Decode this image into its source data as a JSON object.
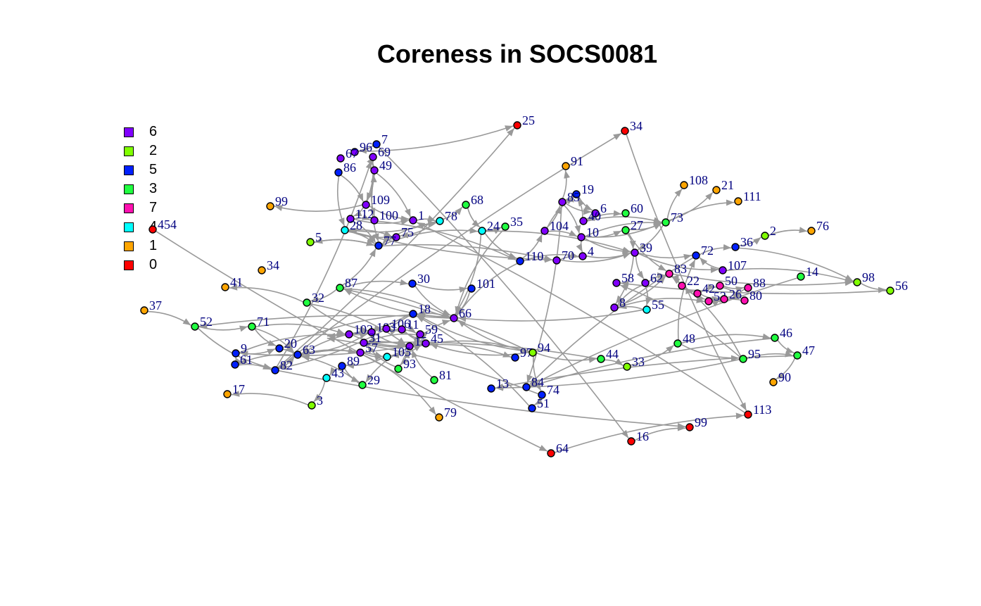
{
  "title": "Coreness in SOCS0081",
  "legend": [
    {
      "label": "6",
      "color": "#8000ff"
    },
    {
      "label": "2",
      "color": "#80ff00"
    },
    {
      "label": "5",
      "color": "#0020ff"
    },
    {
      "label": "3",
      "color": "#20ff40"
    },
    {
      "label": "7",
      "color": "#ff10b0"
    },
    {
      "label": "4",
      "color": "#00ffff"
    },
    {
      "label": "1",
      "color": "#ffa500"
    },
    {
      "label": "0",
      "color": "#ff0000"
    }
  ],
  "colors": {
    "edge": "#999999",
    "node_label": "#000080",
    "node_border": "#000000"
  },
  "nodes": [
    {
      "id": "25",
      "core": "0"
    },
    {
      "id": "34",
      "core": "0"
    },
    {
      "id": "454",
      "core": "0"
    },
    {
      "id": "64",
      "core": "0"
    },
    {
      "id": "16",
      "core": "0"
    },
    {
      "id": "99",
      "core": "0"
    },
    {
      "id": "113",
      "core": "0"
    },
    {
      "id": "7",
      "core": "5"
    },
    {
      "id": "96",
      "core": "6"
    },
    {
      "id": "67",
      "core": "6"
    },
    {
      "id": "69",
      "core": "6"
    },
    {
      "id": "86",
      "core": "5"
    },
    {
      "id": "49",
      "core": "6"
    },
    {
      "id": "109",
      "core": "6"
    },
    {
      "id": "112",
      "core": "6"
    },
    {
      "id": "100",
      "core": "6"
    },
    {
      "id": "1",
      "core": "6"
    },
    {
      "id": "78",
      "core": "4"
    },
    {
      "id": "68",
      "core": "3"
    },
    {
      "id": "28",
      "core": "4"
    },
    {
      "id": "75",
      "core": "6"
    },
    {
      "id": "77",
      "core": "5"
    },
    {
      "id": "24",
      "core": "4"
    },
    {
      "id": "35",
      "core": "3"
    },
    {
      "id": "5",
      "core": "2"
    },
    {
      "id": "99",
      "core": "1"
    },
    {
      "id": "34",
      "core": "1"
    },
    {
      "id": "41",
      "core": "1"
    },
    {
      "id": "37",
      "core": "1"
    },
    {
      "id": "91",
      "core": "1"
    },
    {
      "id": "19",
      "core": "5"
    },
    {
      "id": "85",
      "core": "6"
    },
    {
      "id": "6",
      "core": "6"
    },
    {
      "id": "40",
      "core": "6"
    },
    {
      "id": "60",
      "core": "3"
    },
    {
      "id": "104",
      "core": "6"
    },
    {
      "id": "10",
      "core": "6"
    },
    {
      "id": "27",
      "core": "3"
    },
    {
      "id": "73",
      "core": "3"
    },
    {
      "id": "108",
      "core": "1"
    },
    {
      "id": "21",
      "core": "1"
    },
    {
      "id": "111",
      "core": "1"
    },
    {
      "id": "2",
      "core": "2"
    },
    {
      "id": "76",
      "core": "1"
    },
    {
      "id": "110",
      "core": "5"
    },
    {
      "id": "70",
      "core": "6"
    },
    {
      "id": "4",
      "core": "6"
    },
    {
      "id": "39",
      "core": "6"
    },
    {
      "id": "72",
      "core": "5"
    },
    {
      "id": "36",
      "core": "5"
    },
    {
      "id": "107",
      "core": "6"
    },
    {
      "id": "83",
      "core": "7"
    },
    {
      "id": "22",
      "core": "7"
    },
    {
      "id": "42",
      "core": "7"
    },
    {
      "id": "50",
      "core": "7"
    },
    {
      "id": "88",
      "core": "7"
    },
    {
      "id": "53",
      "core": "7"
    },
    {
      "id": "26",
      "core": "7"
    },
    {
      "id": "80",
      "core": "7"
    },
    {
      "id": "14",
      "core": "3"
    },
    {
      "id": "98",
      "core": "2"
    },
    {
      "id": "56",
      "core": "2"
    },
    {
      "id": "58",
      "core": "6"
    },
    {
      "id": "62",
      "core": "6"
    },
    {
      "id": "8",
      "core": "6"
    },
    {
      "id": "55",
      "core": "4"
    },
    {
      "id": "87",
      "core": "3"
    },
    {
      "id": "30",
      "core": "5"
    },
    {
      "id": "101",
      "core": "5"
    },
    {
      "id": "32",
      "core": "3"
    },
    {
      "id": "66",
      "core": "6"
    },
    {
      "id": "18",
      "core": "5"
    },
    {
      "id": "52",
      "core": "3"
    },
    {
      "id": "71",
      "core": "3"
    },
    {
      "id": "102",
      "core": "6"
    },
    {
      "id": "103",
      "core": "6"
    },
    {
      "id": "106",
      "core": "6"
    },
    {
      "id": "11",
      "core": "6"
    },
    {
      "id": "59",
      "core": "6"
    },
    {
      "id": "31",
      "core": "6"
    },
    {
      "id": "15",
      "core": "6"
    },
    {
      "id": "45",
      "core": "6"
    },
    {
      "id": "9",
      "core": "5"
    },
    {
      "id": "20",
      "core": "5"
    },
    {
      "id": "63",
      "core": "5"
    },
    {
      "id": "61",
      "core": "5"
    },
    {
      "id": "82",
      "core": "5"
    },
    {
      "id": "57",
      "core": "6"
    },
    {
      "id": "105",
      "core": "4"
    },
    {
      "id": "89",
      "core": "5"
    },
    {
      "id": "93",
      "core": "3"
    },
    {
      "id": "43",
      "core": "4"
    },
    {
      "id": "29",
      "core": "3"
    },
    {
      "id": "81",
      "core": "3"
    },
    {
      "id": "3",
      "core": "2"
    },
    {
      "id": "17",
      "core": "1"
    },
    {
      "id": "79",
      "core": "1"
    },
    {
      "id": "97",
      "core": "5"
    },
    {
      "id": "94",
      "core": "2"
    },
    {
      "id": "44",
      "core": "3"
    },
    {
      "id": "33",
      "core": "2"
    },
    {
      "id": "48",
      "core": "3"
    },
    {
      "id": "95",
      "core": "3"
    },
    {
      "id": "46",
      "core": "3"
    },
    {
      "id": "47",
      "core": "3"
    },
    {
      "id": "90",
      "core": "1"
    },
    {
      "id": "13",
      "core": "5"
    },
    {
      "id": "84",
      "core": "5"
    },
    {
      "id": "74",
      "core": "5"
    },
    {
      "id": "51",
      "core": "5"
    }
  ],
  "edges": [
    [
      86,
      0
    ],
    [
      86,
      1
    ],
    [
      2,
      3
    ],
    [
      4,
      5
    ],
    [
      1,
      6
    ],
    [
      3,
      6
    ],
    [
      8,
      0
    ],
    [
      7,
      4
    ],
    [
      86,
      5
    ],
    [
      7,
      8
    ],
    [
      86,
      10
    ],
    [
      10,
      13
    ],
    [
      10,
      12
    ],
    [
      11,
      13
    ],
    [
      13,
      12
    ],
    [
      13,
      14
    ],
    [
      12,
      15
    ],
    [
      14,
      15
    ],
    [
      13,
      16
    ],
    [
      12,
      16
    ],
    [
      14,
      16
    ],
    [
      16,
      17
    ],
    [
      17,
      18
    ],
    [
      17,
      19
    ],
    [
      11,
      19
    ],
    [
      17,
      20
    ],
    [
      19,
      20
    ],
    [
      19,
      21
    ],
    [
      20,
      21
    ],
    [
      14,
      21
    ],
    [
      12,
      21
    ],
    [
      21,
      22
    ],
    [
      18,
      22
    ],
    [
      19,
      20
    ],
    [
      22,
      23
    ],
    [
      21,
      17
    ],
    [
      6,
      16
    ],
    [
      13,
      25
    ],
    [
      21,
      24
    ],
    [
      24,
      21
    ],
    [
      22,
      44
    ],
    [
      21,
      45
    ],
    [
      19,
      45
    ],
    [
      15,
      44
    ],
    [
      44,
      35
    ],
    [
      35,
      30
    ],
    [
      35,
      31
    ],
    [
      30,
      31
    ],
    [
      31,
      32
    ],
    [
      32,
      33
    ],
    [
      33,
      30
    ],
    [
      33,
      34
    ],
    [
      30,
      32
    ],
    [
      35,
      36
    ],
    [
      36,
      37
    ],
    [
      36,
      38
    ],
    [
      37,
      38
    ],
    [
      31,
      36
    ],
    [
      36,
      46
    ],
    [
      44,
      46
    ],
    [
      46,
      47
    ],
    [
      37,
      47
    ],
    [
      36,
      47
    ],
    [
      38,
      47
    ],
    [
      31,
      29
    ],
    [
      38,
      39
    ],
    [
      38,
      40
    ],
    [
      38,
      41
    ],
    [
      47,
      48
    ],
    [
      48,
      49
    ],
    [
      49,
      42
    ],
    [
      42,
      43
    ],
    [
      47,
      50
    ],
    [
      50,
      48
    ],
    [
      48,
      107
    ],
    [
      49,
      60
    ],
    [
      60,
      61
    ],
    [
      61,
      62
    ],
    [
      36,
      38
    ],
    [
      45,
      46
    ],
    [
      47,
      63
    ],
    [
      47,
      64
    ],
    [
      63,
      64
    ],
    [
      63,
      51
    ],
    [
      64,
      51
    ],
    [
      51,
      52
    ],
    [
      52,
      53
    ],
    [
      53,
      54
    ],
    [
      54,
      55
    ],
    [
      55,
      56
    ],
    [
      56,
      57
    ],
    [
      57,
      58
    ],
    [
      53,
      57
    ],
    [
      54,
      58
    ],
    [
      52,
      56
    ],
    [
      50,
      60
    ],
    [
      51,
      60
    ],
    [
      64,
      56
    ],
    [
      65,
      64
    ],
    [
      63,
      65
    ],
    [
      37,
      51
    ],
    [
      22,
      47
    ],
    [
      45,
      47
    ],
    [
      33,
      38
    ],
    [
      59,
      107
    ],
    [
      31,
      107
    ],
    [
      66,
      21
    ],
    [
      66,
      67
    ],
    [
      67,
      68
    ],
    [
      66,
      69
    ],
    [
      69,
      27
    ],
    [
      66,
      70
    ],
    [
      70,
      71
    ],
    [
      70,
      66
    ],
    [
      70,
      72
    ],
    [
      22,
      70
    ],
    [
      67,
      70
    ],
    [
      68,
      70
    ],
    [
      44,
      70
    ],
    [
      65,
      70
    ],
    [
      23,
      70
    ],
    [
      28,
      72
    ],
    [
      72,
      73
    ],
    [
      73,
      74
    ],
    [
      74,
      75
    ],
    [
      75,
      76
    ],
    [
      76,
      77
    ],
    [
      77,
      78
    ],
    [
      78,
      79
    ],
    [
      79,
      80
    ],
    [
      80,
      81
    ],
    [
      81,
      82
    ],
    [
      82,
      83
    ],
    [
      83,
      84
    ],
    [
      84,
      85
    ],
    [
      85,
      86
    ],
    [
      86,
      84
    ],
    [
      84,
      87
    ],
    [
      87,
      88
    ],
    [
      88,
      89
    ],
    [
      89,
      91
    ],
    [
      91,
      94
    ],
    [
      94,
      95
    ],
    [
      90,
      79
    ],
    [
      90,
      80
    ],
    [
      93,
      80
    ],
    [
      92,
      84
    ],
    [
      84,
      88
    ],
    [
      85,
      82
    ],
    [
      82,
      74
    ],
    [
      74,
      80
    ],
    [
      80,
      70
    ],
    [
      75,
      80
    ],
    [
      76,
      81
    ],
    [
      77,
      81
    ],
    [
      78,
      81
    ],
    [
      79,
      81
    ],
    [
      80,
      90
    ],
    [
      80,
      92
    ],
    [
      81,
      88
    ],
    [
      73,
      83
    ],
    [
      73,
      84
    ],
    [
      69,
      75
    ],
    [
      69,
      80
    ],
    [
      89,
      92
    ],
    [
      87,
      96
    ],
    [
      71,
      83
    ],
    [
      71,
      86
    ],
    [
      72,
      86
    ],
    [
      75,
      84
    ],
    [
      76,
      84
    ],
    [
      80,
      97
    ],
    [
      98,
      99
    ],
    [
      99,
      100
    ],
    [
      100,
      101
    ],
    [
      101,
      103
    ],
    [
      101,
      102
    ],
    [
      102,
      104
    ],
    [
      103,
      104
    ],
    [
      104,
      105
    ],
    [
      104,
      106
    ],
    [
      102,
      106
    ],
    [
      103,
      107
    ],
    [
      98,
      111
    ],
    [
      98,
      108
    ],
    [
      108,
      109
    ],
    [
      109,
      111
    ],
    [
      111,
      110
    ],
    [
      108,
      110
    ],
    [
      98,
      81
    ],
    [
      99,
      79
    ],
    [
      81,
      98
    ],
    [
      102,
      62
    ],
    [
      101,
      48
    ],
    [
      102,
      51
    ],
    [
      98,
      70
    ],
    [
      98,
      66
    ],
    [
      113,
      98
    ]
  ],
  "positions_note": ""
}
